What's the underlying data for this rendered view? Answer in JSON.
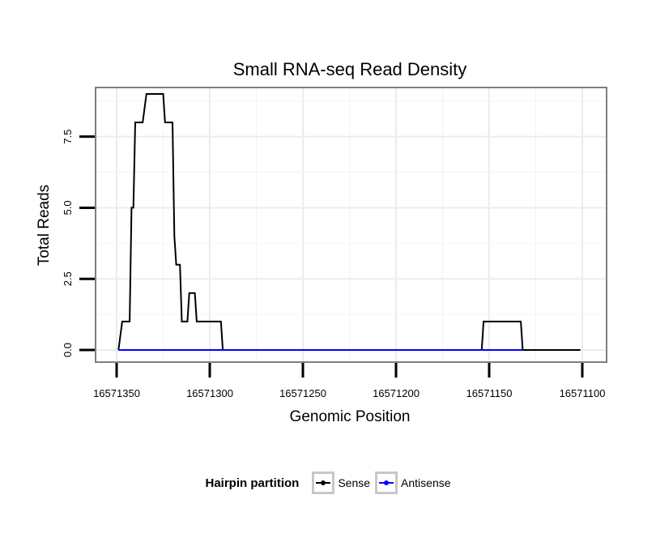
{
  "chart_data": {
    "type": "line",
    "title": "Small RNA-seq Read Density",
    "xlabel": "Genomic Position",
    "ylabel": "Total Reads",
    "xlim": [
      16571350,
      16571100
    ],
    "x_reversed": true,
    "ylim": [
      0,
      9
    ],
    "x_ticks": [
      16571350,
      16571300,
      16571250,
      16571200,
      16571150,
      16571100
    ],
    "x_tick_labels": [
      "16571350",
      "16571300",
      "16571250",
      "16571200",
      "16571150",
      "16571100"
    ],
    "y_ticks": [
      0,
      2.5,
      5,
      7.5
    ],
    "y_tick_labels": [
      "0.0",
      "2.5",
      "5.0",
      "7.5"
    ],
    "grid": true,
    "legend_title": "Hairpin partition",
    "legend_position": "bottom",
    "series": [
      {
        "name": "Sense",
        "color": "#000000",
        "points": [
          [
            16571349,
            0
          ],
          [
            16571347,
            1
          ],
          [
            16571343,
            1
          ],
          [
            16571342,
            5
          ],
          [
            16571341,
            5
          ],
          [
            16571340,
            8
          ],
          [
            16571336,
            8
          ],
          [
            16571334,
            9
          ],
          [
            16571325,
            9
          ],
          [
            16571324,
            8
          ],
          [
            16571320,
            8
          ],
          [
            16571319,
            4
          ],
          [
            16571318,
            3
          ],
          [
            16571316,
            3
          ],
          [
            16571315,
            1
          ],
          [
            16571312,
            1
          ],
          [
            16571311,
            2
          ],
          [
            16571308,
            2
          ],
          [
            16571307,
            1
          ],
          [
            16571294,
            1
          ],
          [
            16571293,
            0
          ],
          [
            16571154,
            0
          ],
          [
            16571153,
            1
          ],
          [
            16571133,
            1
          ],
          [
            16571132,
            0
          ],
          [
            16571101,
            0
          ]
        ]
      },
      {
        "name": "Antisense",
        "color": "#0000ff",
        "points": [
          [
            16571349,
            0
          ],
          [
            16571293,
            0
          ],
          [
            16571154,
            0
          ],
          [
            16571132,
            0
          ]
        ]
      }
    ]
  }
}
